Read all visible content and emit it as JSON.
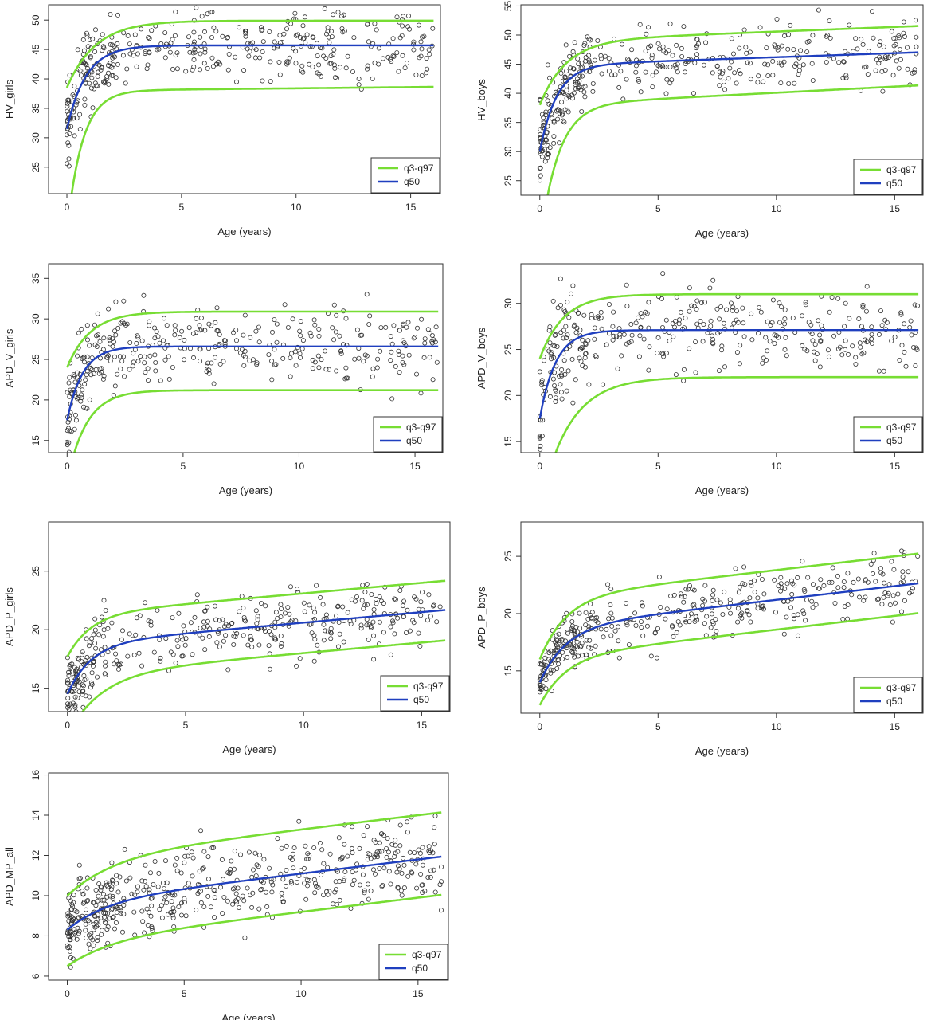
{
  "colors": {
    "band": "#77dd33",
    "median": "#1f3fbf",
    "points": "#333333",
    "frame": "#333333"
  },
  "legend": {
    "band_label": "q3-q97",
    "median_label": "q50"
  },
  "chart_data": [
    {
      "type": "scatter",
      "id": "hv-girls",
      "xlabel": "Age (years)",
      "ylabel": "HV_girls",
      "xlim": [
        -0.8,
        16.3
      ],
      "ylim": [
        20.5,
        52.6
      ],
      "xticks": [
        0,
        5,
        10,
        15
      ],
      "yticks": [
        25,
        30,
        35,
        40,
        45,
        50
      ],
      "legend_position": "bottom-right",
      "n_points": 390,
      "seed": 11,
      "curves": {
        "q50": {
          "y0": 31.5,
          "yinf": 45.7,
          "k": 1.2,
          "slope": 0
        },
        "q3": {
          "y0": 14.0,
          "yinf": 38.0,
          "k": 1.5,
          "slope": 0.04
        },
        "q97": {
          "y0": 38.5,
          "yinf": 49.9,
          "k": 0.8,
          "slope": 0
        }
      }
    },
    {
      "type": "scatter",
      "id": "hv-boys",
      "xlabel": "Age (years)",
      "ylabel": "HV_boys",
      "xlim": [
        -0.8,
        16.2
      ],
      "ylim": [
        22.5,
        55.2
      ],
      "xticks": [
        0,
        5,
        10,
        15
      ],
      "yticks": [
        25,
        30,
        35,
        40,
        45,
        50,
        55
      ],
      "legend_position": "bottom-right",
      "n_points": 390,
      "seed": 23,
      "curves": {
        "q50": {
          "y0": 30.0,
          "yinf": 44.8,
          "k": 1.4,
          "slope": 0.14
        },
        "q3": {
          "y0": 14.0,
          "yinf": 38.0,
          "k": 1.3,
          "slope": 0.21
        },
        "q97": {
          "y0": 38.0,
          "yinf": 49.0,
          "k": 0.9,
          "slope": 0.16
        }
      }
    },
    {
      "type": "scatter",
      "id": "apd-v-girls",
      "xlabel": "Age (years)",
      "ylabel": "APD_V_girls",
      "xlim": [
        -0.8,
        16.2
      ],
      "ylim": [
        13.5,
        36.8
      ],
      "xticks": [
        0,
        5,
        10,
        15
      ],
      "yticks": [
        15,
        20,
        25,
        30,
        35
      ],
      "legend_position": "bottom-right",
      "n_points": 360,
      "seed": 37,
      "curves": {
        "q50": {
          "y0": 17.5,
          "yinf": 26.6,
          "k": 1.5,
          "slope": 0
        },
        "q3": {
          "y0": 10.0,
          "yinf": 21.2,
          "k": 1.2,
          "slope": 0
        },
        "q97": {
          "y0": 24.0,
          "yinf": 30.9,
          "k": 1.0,
          "slope": 0
        }
      }
    },
    {
      "type": "scatter",
      "id": "apd-v-boys",
      "xlabel": "Age (years)",
      "ylabel": "APD_V_boys",
      "xlim": [
        -0.8,
        16.2
      ],
      "ylim": [
        13.8,
        34.3
      ],
      "xticks": [
        0,
        5,
        10,
        15
      ],
      "yticks": [
        15,
        20,
        25,
        30
      ],
      "legend_position": "bottom-right",
      "n_points": 360,
      "seed": 41,
      "curves": {
        "q50": {
          "y0": 17.5,
          "yinf": 27.1,
          "k": 1.5,
          "slope": 0
        },
        "q3": {
          "y0": 8.0,
          "yinf": 22.0,
          "k": 0.8,
          "slope": 0
        },
        "q97": {
          "y0": 24.0,
          "yinf": 31.0,
          "k": 1.0,
          "slope": 0
        }
      }
    },
    {
      "type": "scatter",
      "id": "apd-p-girls",
      "xlabel": "Age (years)",
      "ylabel": "APD_P_girls",
      "xlim": [
        -0.8,
        16.2
      ],
      "ylim": [
        13.0,
        29.2
      ],
      "xticks": [
        0,
        5,
        10,
        15
      ],
      "yticks": [
        15,
        20,
        25
      ],
      "legend_position": "bottom-right",
      "n_points": 380,
      "seed": 53,
      "curves": {
        "q50": {
          "y0": 14.5,
          "yinf": 18.8,
          "k": 1.0,
          "slope": 0.18
        },
        "q3": {
          "y0": 11.0,
          "yinf": 16.2,
          "k": 0.7,
          "slope": 0.18
        },
        "q97": {
          "y0": 17.7,
          "yinf": 21.3,
          "k": 1.0,
          "slope": 0.18
        }
      }
    },
    {
      "type": "scatter",
      "id": "apd-p-boys",
      "xlabel": "Age (years)",
      "ylabel": "APD_P_boys",
      "xlim": [
        -0.8,
        16.2
      ],
      "ylim": [
        11.3,
        28.0
      ],
      "xticks": [
        0,
        5,
        10,
        15
      ],
      "yticks": [
        15,
        20,
        25
      ],
      "legend_position": "bottom-right",
      "n_points": 390,
      "seed": 67,
      "curves": {
        "q50": {
          "y0": 14.0,
          "yinf": 18.8,
          "k": 0.9,
          "slope": 0.24
        },
        "q3": {
          "y0": 12.0,
          "yinf": 16.2,
          "k": 0.9,
          "slope": 0.24
        },
        "q97": {
          "y0": 16.0,
          "yinf": 21.4,
          "k": 0.9,
          "slope": 0.24
        }
      }
    },
    {
      "type": "scatter",
      "id": "apd-mp-all",
      "xlabel": "Age (years)",
      "ylabel": "APD_MP_all",
      "xlim": [
        -0.8,
        16.3
      ],
      "ylim": [
        5.8,
        16.1
      ],
      "xticks": [
        0,
        5,
        10,
        15
      ],
      "yticks": [
        6,
        8,
        10,
        12,
        14,
        16
      ],
      "legend_position": "bottom-right",
      "n_points": 520,
      "seed": 79,
      "curves": {
        "q50": {
          "y0": 8.3,
          "yinf": 9.7,
          "k": 0.6,
          "slope": 0.14
        },
        "q3": {
          "y0": 6.5,
          "yinf": 7.8,
          "k": 0.5,
          "slope": 0.14
        },
        "q97": {
          "y0": 10.0,
          "yinf": 11.9,
          "k": 0.5,
          "slope": 0.14
        }
      }
    }
  ]
}
